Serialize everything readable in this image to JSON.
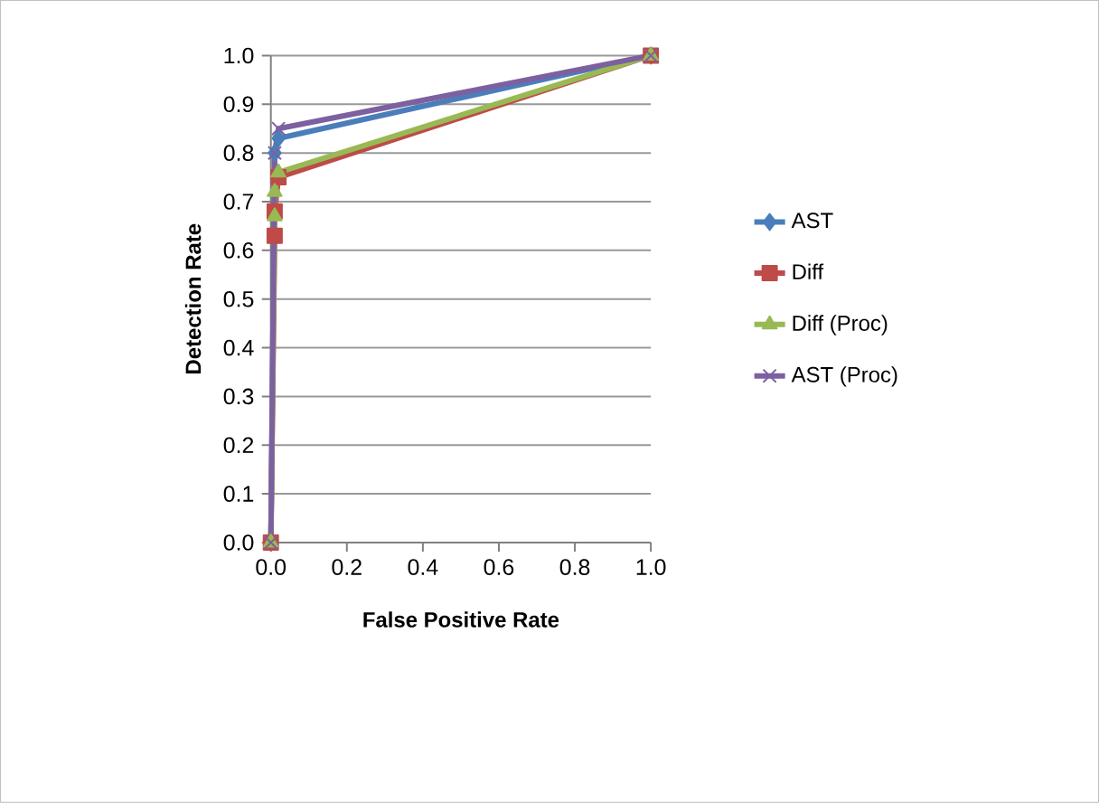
{
  "chart_data": {
    "type": "line",
    "xlabel": "False Positive Rate",
    "ylabel": "Detection Rate",
    "xlim": [
      0,
      1
    ],
    "ylim": [
      0,
      1
    ],
    "xticks": [
      {
        "value": 0,
        "label": "0.0"
      },
      {
        "value": 0.2,
        "label": "0.2"
      },
      {
        "value": 0.4,
        "label": "0.4"
      },
      {
        "value": 0.6,
        "label": "0.6"
      },
      {
        "value": 0.8,
        "label": "0.8"
      },
      {
        "value": 1,
        "label": "1.0"
      }
    ],
    "yticks": [
      {
        "value": 0,
        "label": "0.0"
      },
      {
        "value": 0.1,
        "label": "0.1"
      },
      {
        "value": 0.2,
        "label": "0.2"
      },
      {
        "value": 0.3,
        "label": "0.3"
      },
      {
        "value": 0.4,
        "label": "0.4"
      },
      {
        "value": 0.5,
        "label": "0.5"
      },
      {
        "value": 0.6,
        "label": "0.6"
      },
      {
        "value": 0.7,
        "label": "0.7"
      },
      {
        "value": 0.8,
        "label": "0.8"
      },
      {
        "value": 0.9,
        "label": "0.9"
      },
      {
        "value": 1,
        "label": "1.0"
      }
    ],
    "grid": "y",
    "legend": "right",
    "series": [
      {
        "name": "AST",
        "color": "#4a7ebb",
        "marker": "diamond",
        "x": [
          0,
          0.01,
          0.02,
          1
        ],
        "values": [
          0,
          0.8,
          0.83,
          1
        ]
      },
      {
        "name": "Diff",
        "color": "#be4b48",
        "marker": "square",
        "x": [
          0,
          0.01,
          0.01,
          0.02,
          1
        ],
        "values": [
          0,
          0.63,
          0.68,
          0.75,
          1
        ]
      },
      {
        "name": "Diff (Proc)",
        "color": "#98b954",
        "marker": "triangle",
        "x": [
          0,
          0.01,
          0.01,
          0.02,
          1
        ],
        "values": [
          0,
          0.67,
          0.72,
          0.76,
          1
        ]
      },
      {
        "name": "AST (Proc)",
        "color": "#7d60a0",
        "marker": "cross",
        "x": [
          0,
          0.01,
          0.02,
          1
        ],
        "values": [
          0,
          0.8,
          0.85,
          1
        ]
      }
    ]
  }
}
